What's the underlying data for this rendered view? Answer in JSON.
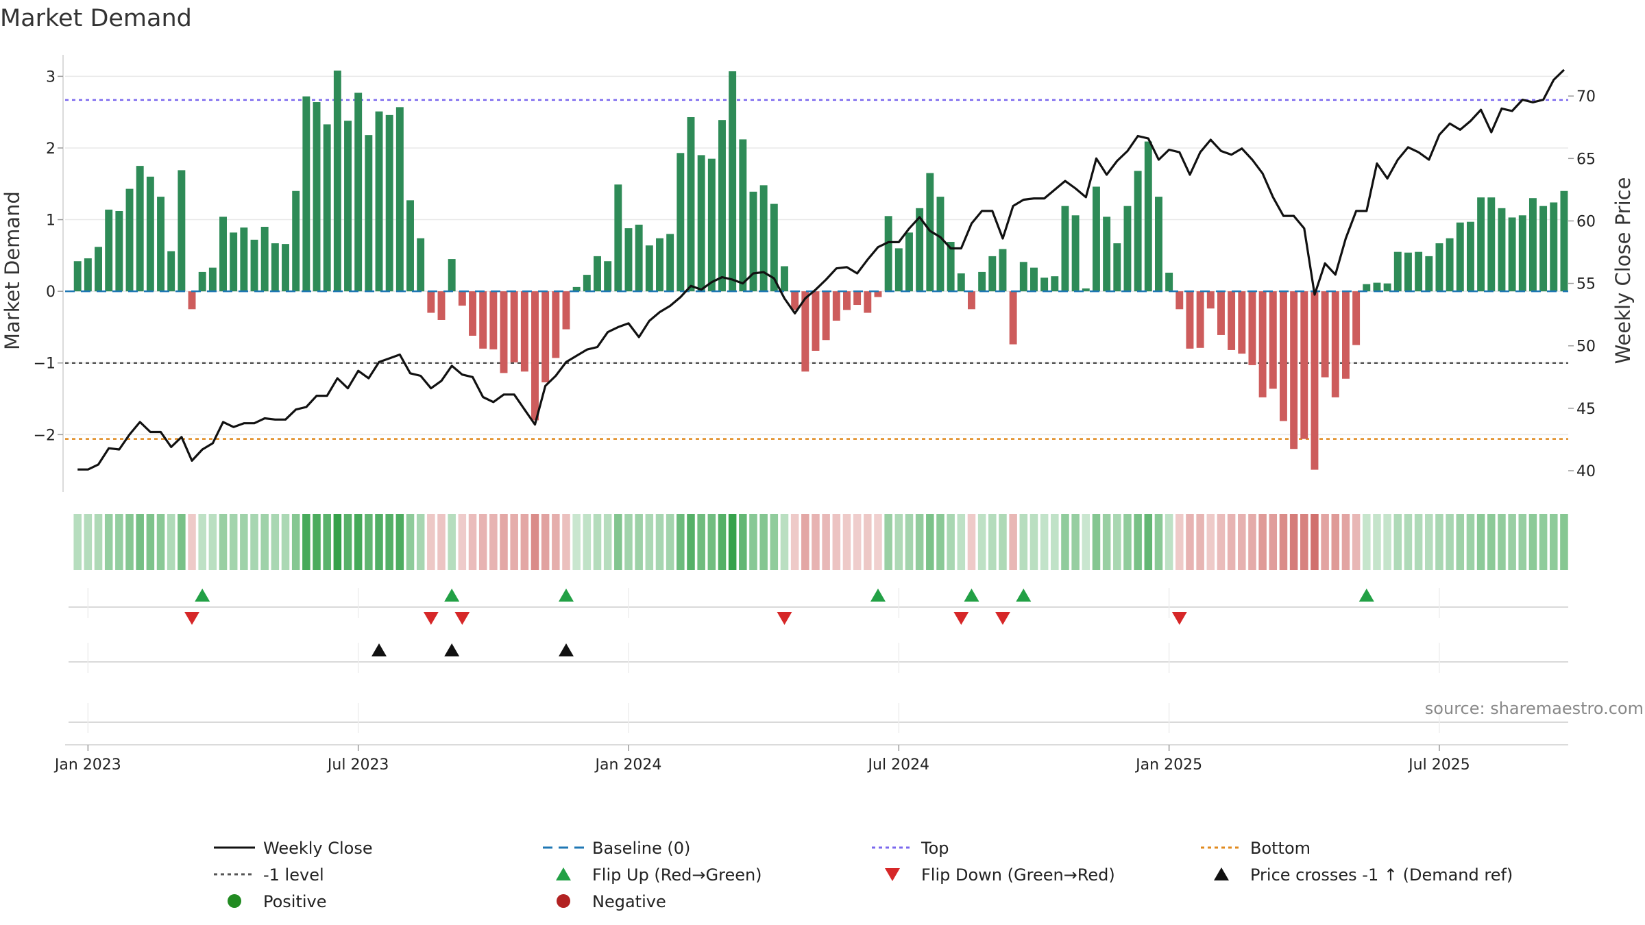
{
  "chart_data": {
    "type": "bar",
    "title": "Market Demand",
    "ylabel_left": "Market Demand",
    "ylabel_right": "Weekly Close Price",
    "source": "source: sharemaestro.com",
    "left_axis": {
      "ylim": [
        -2.8,
        3.3
      ],
      "ticks": [
        -2,
        -1,
        0,
        1,
        2,
        3
      ],
      "tick_labels": [
        "−2",
        "−1",
        "0",
        "1",
        "2",
        "3"
      ]
    },
    "right_axis": {
      "ylim": [
        38.3,
        73.3
      ],
      "ticks": [
        40,
        45,
        50,
        55,
        60,
        65,
        70
      ],
      "tick_labels": [
        "40",
        "45",
        "50",
        "55",
        "60",
        "65",
        "70"
      ]
    },
    "x_axis": {
      "ticks": [
        1,
        27,
        53,
        79,
        105,
        131
      ],
      "tick_labels": [
        "Jan 2023",
        "Jul 2023",
        "Jan 2024",
        "Jul 2024",
        "Jan 2025",
        "Jul 2025"
      ],
      "xlim": [
        -1.2,
        143.4
      ]
    },
    "reference_lines": {
      "top": 2.67,
      "bottom": -2.06,
      "minus_one": -1,
      "baseline": 0
    },
    "demand": [
      0.42,
      0.46,
      0.62,
      1.14,
      1.12,
      1.43,
      1.75,
      1.6,
      1.32,
      0.56,
      1.69,
      -0.25,
      0.27,
      0.33,
      1.04,
      0.82,
      0.89,
      0.72,
      0.9,
      0.67,
      0.66,
      1.4,
      2.72,
      2.64,
      2.33,
      3.08,
      2.38,
      2.77,
      2.18,
      2.51,
      2.46,
      2.57,
      1.27,
      0.74,
      -0.3,
      -0.4,
      0.45,
      -0.2,
      -0.62,
      -0.8,
      -0.81,
      -1.14,
      -0.99,
      -1.12,
      -1.8,
      -1.27,
      -0.93,
      -0.53,
      0.06,
      0.23,
      0.49,
      0.42,
      1.49,
      0.88,
      0.93,
      0.64,
      0.74,
      0.8,
      1.93,
      2.43,
      1.9,
      1.85,
      2.39,
      3.07,
      2.12,
      1.39,
      1.48,
      1.22,
      0.35,
      -0.26,
      -1.12,
      -0.83,
      -0.68,
      -0.41,
      -0.26,
      -0.19,
      -0.3,
      -0.08,
      1.05,
      0.6,
      0.82,
      1.16,
      1.65,
      1.32,
      0.69,
      0.25,
      -0.25,
      0.27,
      0.49,
      0.59,
      -0.74,
      0.41,
      0.33,
      0.19,
      0.21,
      1.19,
      1.06,
      0.04,
      1.46,
      1.04,
      0.67,
      1.19,
      1.68,
      2.09,
      1.32,
      0.26,
      -0.25,
      -0.8,
      -0.79,
      -0.24,
      -0.61,
      -0.82,
      -0.87,
      -1.03,
      -1.48,
      -1.36,
      -1.81,
      -2.2,
      -2.06,
      -2.49,
      -1.2,
      -1.48,
      -1.22,
      -0.75,
      0.1,
      0.12,
      0.11,
      0.55,
      0.54,
      0.55,
      0.49,
      0.67,
      0.74,
      0.96,
      0.97,
      1.31,
      1.31,
      1.16,
      1.03,
      1.06,
      1.3,
      1.19,
      1.24,
      1.4
    ],
    "weekly_close": [
      40.1,
      40.1,
      40.5,
      41.8,
      41.7,
      42.9,
      43.9,
      43.1,
      43.1,
      41.9,
      42.7,
      40.8,
      41.7,
      42.2,
      43.9,
      43.5,
      43.8,
      43.8,
      44.2,
      44.1,
      44.1,
      44.9,
      45.1,
      46.0,
      46.0,
      47.4,
      46.6,
      48.0,
      47.4,
      48.7,
      49.0,
      49.3,
      47.8,
      47.6,
      46.6,
      47.2,
      48.4,
      47.7,
      47.5,
      45.9,
      45.5,
      46.1,
      46.1,
      44.9,
      43.7,
      46.8,
      47.6,
      48.7,
      49.2,
      49.7,
      49.9,
      51.1,
      51.5,
      51.8,
      50.7,
      52.0,
      52.7,
      53.2,
      53.9,
      54.8,
      54.5,
      55.1,
      55.5,
      55.3,
      55.0,
      55.8,
      55.9,
      55.4,
      53.8,
      52.6,
      53.8,
      54.5,
      55.3,
      56.2,
      56.3,
      55.8,
      56.9,
      57.9,
      58.3,
      58.3,
      59.4,
      60.3,
      59.2,
      58.7,
      57.8,
      57.8,
      59.8,
      60.8,
      60.8,
      58.6,
      61.2,
      61.7,
      61.8,
      61.8,
      62.5,
      63.2,
      62.6,
      61.9,
      65.0,
      63.7,
      64.8,
      65.6,
      66.8,
      66.6,
      64.9,
      65.7,
      65.5,
      63.7,
      65.5,
      66.5,
      65.6,
      65.3,
      65.8,
      64.9,
      63.8,
      61.9,
      60.4,
      60.4,
      59.4,
      54.1,
      56.6,
      55.7,
      58.6,
      60.8,
      60.8,
      64.6,
      63.4,
      64.9,
      65.9,
      65.5,
      64.9,
      66.9,
      67.8,
      67.3,
      68.0,
      68.9,
      67.1,
      69.0,
      68.8,
      69.7,
      69.5,
      69.7,
      71.3,
      72.1
    ],
    "flip_up_x": [
      12,
      36,
      47,
      77,
      86,
      91,
      124
    ],
    "flip_down_x": [
      11,
      34,
      37,
      68,
      85,
      89,
      106
    ],
    "price_cross_x": [
      29,
      36,
      47
    ],
    "legend": [
      {
        "label": "Weekly Close",
        "symbol": "line-solid",
        "color": "#111111"
      },
      {
        "label": "Baseline (0)",
        "symbol": "line-dash",
        "color": "#1f77b4"
      },
      {
        "label": "Top",
        "symbol": "line-dot",
        "color": "#7b68ee"
      },
      {
        "label": "Bottom",
        "symbol": "line-dot",
        "color": "#e08a1e"
      },
      {
        "label": "-1 level",
        "symbol": "line-dot",
        "color": "#555555"
      },
      {
        "label": "Flip Up (Red→Green)",
        "symbol": "triangle-up",
        "color": "#22a045"
      },
      {
        "label": "Flip Down (Green→Red)",
        "symbol": "triangle-down",
        "color": "#d62728"
      },
      {
        "label": "Price crosses -1 ↑ (Demand ref)",
        "symbol": "triangle-up",
        "color": "#111111"
      },
      {
        "label": "Positive",
        "symbol": "circle",
        "color": "#228b22"
      },
      {
        "label": "Negative",
        "symbol": "circle",
        "color": "#b22222"
      }
    ],
    "colors": {
      "positive_bar": "#2e8b57",
      "negative_bar": "#cd5c5c",
      "heat_positive": "#2e9e44",
      "heat_negative": "#c8534f",
      "grid": "#e8e8e8",
      "lane": "#d9d9d9"
    }
  }
}
